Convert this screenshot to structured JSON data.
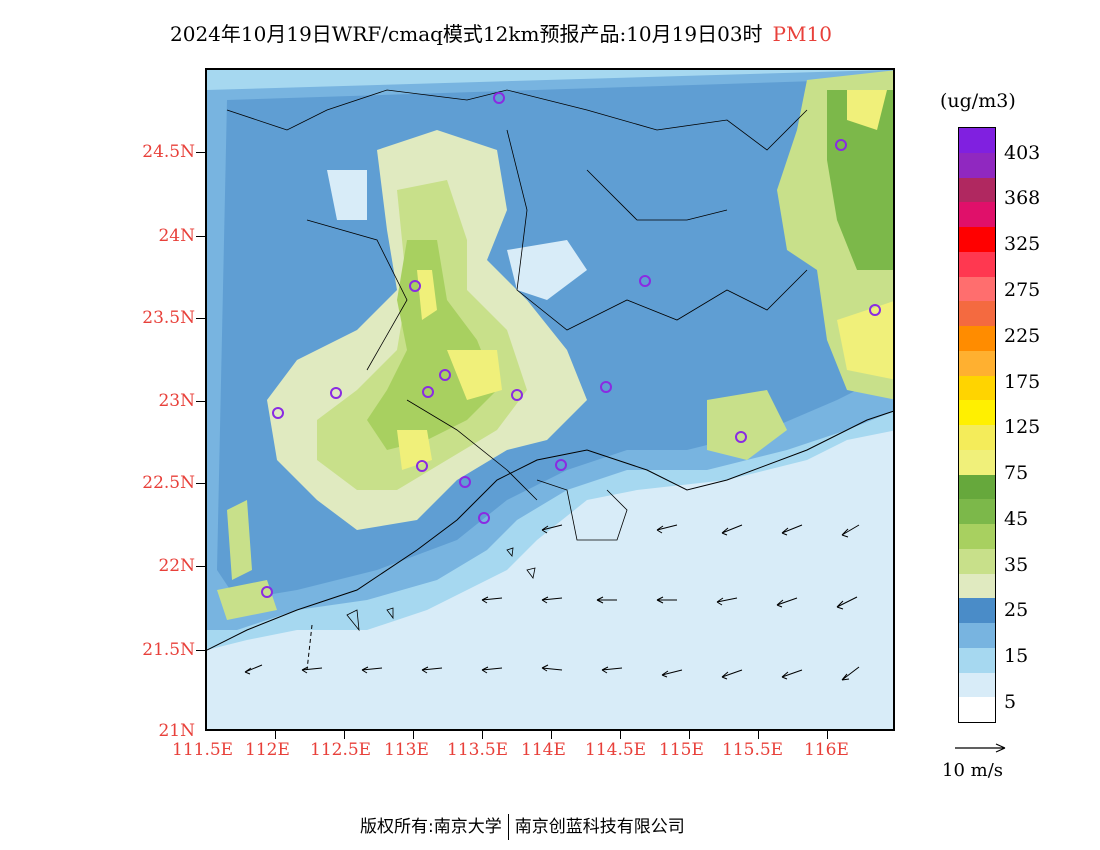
{
  "title": {
    "text": "2024年10月19日WRF/cmaq模式12km预报产品:10月19日03时",
    "product": "PM10"
  },
  "map": {
    "lat_labels": [
      "24.5N",
      "24N",
      "23.5N",
      "23N",
      "22.5N",
      "22N",
      "21.5N",
      "21N"
    ],
    "lon_labels": [
      "111.5E",
      "112E",
      "112.5E",
      "113E",
      "113.5E",
      "114E",
      "114.5E",
      "115E",
      "115.5E",
      "116E"
    ],
    "cities_marker_color": "#8a2be2",
    "coast_color": "#000000",
    "sea_color": "#d8ecf8"
  },
  "colorbar": {
    "unit": "(ug/m3)",
    "labels": [
      "403",
      "368",
      "325",
      "275",
      "225",
      "175",
      "125",
      "75",
      "45",
      "35",
      "25",
      "15",
      "5"
    ],
    "colors": [
      "#ffffff",
      "#d8ecf8",
      "#a6d8f0",
      "#78b4e0",
      "#4a8cc8",
      "#e0eac0",
      "#c8e08a",
      "#a8d060",
      "#7cb84a",
      "#66a83c",
      "#f0f07a",
      "#f4ec5a",
      "#fff000",
      "#ffd400",
      "#ffb030",
      "#ff8c00",
      "#f46a40",
      "#ff6e6e",
      "#ff3850",
      "#ff0000",
      "#e0106a",
      "#b02860",
      "#9028c0",
      "#8020e0"
    ]
  },
  "wind_legend": {
    "label": "10 m/s"
  },
  "footer": {
    "left": "版权所有:南京大学",
    "right": "南京创蓝科技有限公司"
  }
}
